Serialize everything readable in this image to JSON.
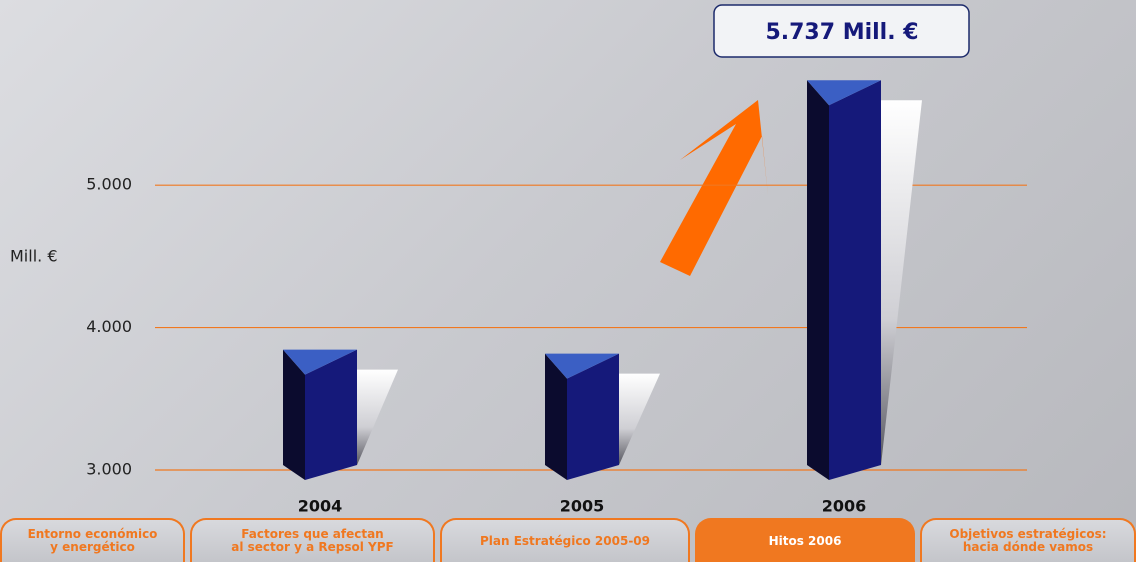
{
  "chart_data": {
    "type": "bar",
    "y_label": "Mill. €",
    "categories": [
      "2004",
      "2005",
      "2006"
    ],
    "values": [
      3845,
      3817,
      5737
    ],
    "value_labels": [
      null,
      null,
      "5.737 Mill. €"
    ],
    "color": "#15197a",
    "ylim": [
      3000,
      5900
    ],
    "yticks": [
      {
        "value": 3000,
        "label": "3.000"
      },
      {
        "value": 4000,
        "label": "4.000"
      },
      {
        "value": 5000,
        "label": "5.000"
      }
    ],
    "grid": true,
    "grid_color": "#f07820"
  },
  "tabs": [
    "Entorno económico\ny energético",
    "Factores que afectan\nal sector y a Repsol YPF",
    "Plan Estratégico 2005-09",
    "Hitos 2006",
    "Objetivos estratégicos:\nhacia dónde vamos"
  ],
  "active_tab": 3
}
